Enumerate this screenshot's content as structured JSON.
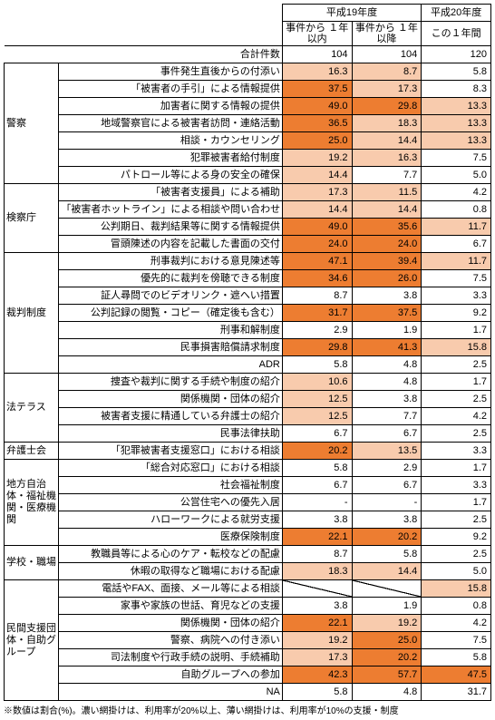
{
  "colors": {
    "deep": "#ED7D31",
    "light": "#F8CBAD",
    "none": "#FFFFFF"
  },
  "header": {
    "h19": "平成19年度",
    "h20": "平成20年度",
    "c1": "事件から\n１年以内",
    "c2": "事件から\n１年以降",
    "c3": "この１年間"
  },
  "totalRow": {
    "label": "合計件数",
    "v1": "104",
    "v2": "104",
    "v3": "120"
  },
  "groups": [
    {
      "cat": "警察",
      "rows": [
        {
          "label": "事件発生直後からの付添い",
          "v": [
            "16.3",
            "8.7",
            "5.8"
          ],
          "s": [
            "l",
            "l",
            "n"
          ]
        },
        {
          "label": "「被害者の手引」による情報提供",
          "v": [
            "37.5",
            "17.3",
            "8.3"
          ],
          "s": [
            "d",
            "l",
            "n"
          ]
        },
        {
          "label": "加害者に関する情報の提供",
          "v": [
            "49.0",
            "29.8",
            "13.3"
          ],
          "s": [
            "d",
            "d",
            "l"
          ]
        },
        {
          "label": "地域警察官による被害者訪問・連絡活動",
          "v": [
            "36.5",
            "18.3",
            "13.3"
          ],
          "s": [
            "d",
            "l",
            "l"
          ]
        },
        {
          "label": "相談・カウンセリング",
          "v": [
            "25.0",
            "14.4",
            "13.3"
          ],
          "s": [
            "d",
            "l",
            "l"
          ]
        },
        {
          "label": "犯罪被害者給付制度",
          "v": [
            "19.2",
            "16.3",
            "7.5"
          ],
          "s": [
            "l",
            "l",
            "n"
          ]
        },
        {
          "label": "パトロール等による身の安全の確保",
          "v": [
            "14.4",
            "7.7",
            "5.0"
          ],
          "s": [
            "l",
            "n",
            "n"
          ]
        }
      ]
    },
    {
      "cat": "検察庁",
      "rows": [
        {
          "label": "「被害者支援員」による補助",
          "v": [
            "17.3",
            "11.5",
            "4.2"
          ],
          "s": [
            "l",
            "l",
            "n"
          ]
        },
        {
          "label": "「被害者ホットライン」による相談や問い合わせ",
          "v": [
            "14.4",
            "14.4",
            "0.8"
          ],
          "s": [
            "l",
            "l",
            "n"
          ]
        },
        {
          "label": "公判期日、裁判結果等に関する情報提供",
          "v": [
            "49.0",
            "35.6",
            "11.7"
          ],
          "s": [
            "d",
            "d",
            "l"
          ]
        },
        {
          "label": "冒頭陳述の内容を記載した書面の交付",
          "v": [
            "24.0",
            "24.0",
            "6.7"
          ],
          "s": [
            "d",
            "d",
            "n"
          ]
        }
      ]
    },
    {
      "cat": "裁判制度",
      "rows": [
        {
          "label": "刑事裁判における意見陳述等",
          "v": [
            "47.1",
            "39.4",
            "11.7"
          ],
          "s": [
            "d",
            "d",
            "l"
          ]
        },
        {
          "label": "優先的に裁判を傍聴できる制度",
          "v": [
            "34.6",
            "26.0",
            "7.5"
          ],
          "s": [
            "d",
            "d",
            "n"
          ]
        },
        {
          "label": "証人尋問でのビデオリンク・遮へい措置",
          "v": [
            "8.7",
            "3.8",
            "3.3"
          ],
          "s": [
            "n",
            "n",
            "n"
          ]
        },
        {
          "label": "公判記録の閲覧・コピー（確定後も含む）",
          "v": [
            "31.7",
            "37.5",
            "9.2"
          ],
          "s": [
            "d",
            "d",
            "n"
          ]
        },
        {
          "label": "刑事和解制度",
          "v": [
            "2.9",
            "1.9",
            "1.7"
          ],
          "s": [
            "n",
            "n",
            "n"
          ]
        },
        {
          "label": "民事損害賠償請求制度",
          "v": [
            "29.8",
            "41.3",
            "15.8"
          ],
          "s": [
            "d",
            "d",
            "l"
          ]
        },
        {
          "label": "ADR",
          "v": [
            "5.8",
            "4.8",
            "2.5"
          ],
          "s": [
            "n",
            "n",
            "n"
          ]
        }
      ]
    },
    {
      "cat": "法テラス",
      "rows": [
        {
          "label": "捜査や裁判に関する手続や制度の紹介",
          "v": [
            "10.6",
            "4.8",
            "1.7"
          ],
          "s": [
            "l",
            "n",
            "n"
          ]
        },
        {
          "label": "関係機関・団体の紹介",
          "v": [
            "12.5",
            "3.8",
            "2.5"
          ],
          "s": [
            "l",
            "n",
            "n"
          ]
        },
        {
          "label": "被害者支援に精通している弁護士の紹介",
          "v": [
            "12.5",
            "7.7",
            "4.2"
          ],
          "s": [
            "l",
            "n",
            "n"
          ]
        },
        {
          "label": "民事法律扶助",
          "v": [
            "6.7",
            "6.7",
            "2.5"
          ],
          "s": [
            "n",
            "n",
            "n"
          ]
        }
      ]
    },
    {
      "cat": "弁護士会",
      "rows": [
        {
          "label": "「犯罪被害者支援窓口」における相談",
          "v": [
            "20.2",
            "13.5",
            "3.3"
          ],
          "s": [
            "d",
            "l",
            "n"
          ]
        }
      ]
    },
    {
      "cat": "地方自治体・福祉機関・医療機関",
      "rows": [
        {
          "label": "「総合対応窓口」における相談",
          "v": [
            "5.8",
            "2.9",
            "1.7"
          ],
          "s": [
            "n",
            "n",
            "n"
          ]
        },
        {
          "label": "社会福祉制度",
          "v": [
            "6.7",
            "6.7",
            "3.3"
          ],
          "s": [
            "n",
            "n",
            "n"
          ]
        },
        {
          "label": "公営住宅への優先入居",
          "v": [
            "-",
            "-",
            "1.7"
          ],
          "s": [
            "n",
            "n",
            "n"
          ]
        },
        {
          "label": "ハローワークによる就労支援",
          "v": [
            "3.8",
            "3.8",
            "2.5"
          ],
          "s": [
            "n",
            "n",
            "n"
          ]
        },
        {
          "label": "医療保険制度",
          "v": [
            "22.1",
            "20.2",
            "9.2"
          ],
          "s": [
            "d",
            "d",
            "n"
          ]
        }
      ]
    },
    {
      "cat": "学校・職場",
      "rows": [
        {
          "label": "教職員等による心のケア・転校などの配慮",
          "v": [
            "8.7",
            "5.8",
            "2.5"
          ],
          "s": [
            "n",
            "n",
            "n"
          ]
        },
        {
          "label": "休暇の取得など職場における配慮",
          "v": [
            "18.3",
            "14.4",
            "5.0"
          ],
          "s": [
            "l",
            "l",
            "n"
          ]
        }
      ]
    },
    {
      "cat": "民間支援団体・自助グループ",
      "rows": [
        {
          "label": "電話やFAX、面接、メール等による相談",
          "v": [
            "",
            "",
            "15.8"
          ],
          "s": [
            "x",
            "x",
            "l"
          ]
        },
        {
          "label": "家事や家族の世話、育児などの支援",
          "v": [
            "3.8",
            "1.9",
            "0.8"
          ],
          "s": [
            "n",
            "n",
            "n"
          ]
        },
        {
          "label": "関係機関・団体の紹介",
          "v": [
            "22.1",
            "19.2",
            "4.2"
          ],
          "s": [
            "d",
            "l",
            "n"
          ]
        },
        {
          "label": "警察、病院への付き添い",
          "v": [
            "19.2",
            "25.0",
            "7.5"
          ],
          "s": [
            "l",
            "d",
            "n"
          ]
        },
        {
          "label": "司法制度や行政手続の説明、手続補助",
          "v": [
            "17.3",
            "20.2",
            "5.8"
          ],
          "s": [
            "l",
            "d",
            "n"
          ]
        },
        {
          "label": "自助グループへの参加",
          "v": [
            "42.3",
            "57.7",
            "47.5"
          ],
          "s": [
            "d",
            "d",
            "d"
          ]
        },
        {
          "label": "NA",
          "v": [
            "5.8",
            "4.8",
            "31.7"
          ],
          "s": [
            "n",
            "n",
            "n"
          ]
        }
      ]
    }
  ],
  "footnote": "※数値は割合(%)。濃い網掛けは、利用率が20%以上、薄い網掛けは、利用率が10%の支援・制度"
}
